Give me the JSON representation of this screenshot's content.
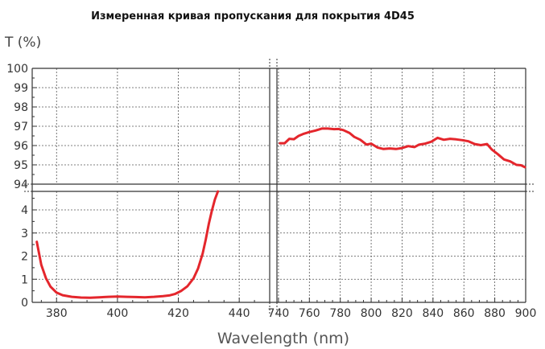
{
  "chart_data": {
    "type": "line",
    "title": "Измеренная кривая пропускания для покрытия 4D45",
    "ylabel": "T (%)",
    "xlabel": "Wavelength (nm)",
    "broken_axes": true,
    "grid": true,
    "colors": {
      "series": "#e4262c",
      "axis": "#333333",
      "grid": "#555555"
    },
    "x_ranges": [
      [
        372,
        450
      ],
      [
        739,
        900
      ]
    ],
    "y_ranges": [
      [
        0,
        4.8
      ],
      [
        94,
        100
      ]
    ],
    "xticks_left": [
      380,
      400,
      420,
      440
    ],
    "xticks_right": [
      740,
      760,
      780,
      800,
      820,
      840,
      860,
      880,
      900
    ],
    "xtick_labels_left": [
      "380",
      "400",
      "420",
      "440"
    ],
    "xtick_labels_right": [
      "740",
      "760",
      "780",
      "800",
      "820",
      "840",
      "860",
      "880",
      "900"
    ],
    "yticks_top": [
      94,
      95,
      96,
      97,
      98,
      99,
      100
    ],
    "yticks_bottom": [
      0,
      1,
      2,
      3,
      4
    ],
    "ytick_labels_top": [
      "94",
      "95",
      "96",
      "97",
      "98",
      "99",
      "100"
    ],
    "ytick_labels_bottom": [
      "0",
      "1",
      "2",
      "3",
      "4"
    ],
    "series": [
      {
        "segment": "short-wavelength",
        "x": [
          373.5,
          375,
          376.5,
          378,
          380,
          382,
          385,
          388,
          391,
          394,
          397,
          400,
          403,
          406,
          409,
          412,
          415,
          417,
          419,
          421,
          423,
          425,
          426.5,
          428,
          429,
          430,
          431,
          432,
          433
        ],
        "y": [
          2.62,
          1.62,
          1.05,
          0.68,
          0.42,
          0.31,
          0.24,
          0.21,
          0.2,
          0.22,
          0.24,
          0.25,
          0.24,
          0.23,
          0.22,
          0.24,
          0.27,
          0.3,
          0.37,
          0.5,
          0.7,
          1.04,
          1.47,
          2.12,
          2.72,
          3.4,
          3.95,
          4.45,
          4.8
        ]
      },
      {
        "segment": "long-wavelength",
        "x": [
          741,
          744,
          747,
          750,
          753,
          756,
          760,
          764,
          768,
          772,
          776,
          779,
          782,
          786,
          789,
          793,
          797,
          800,
          804,
          808,
          812,
          816,
          820,
          824,
          828,
          831,
          835,
          839,
          843,
          847,
          851,
          855,
          859,
          863,
          867,
          871,
          875,
          878,
          882,
          886,
          890,
          894,
          897,
          899.5
        ],
        "y": [
          96.12,
          96.12,
          96.35,
          96.33,
          96.5,
          96.6,
          96.7,
          96.78,
          96.88,
          96.88,
          96.85,
          96.86,
          96.8,
          96.65,
          96.45,
          96.3,
          96.05,
          96.1,
          95.9,
          95.82,
          95.85,
          95.82,
          95.87,
          95.97,
          95.92,
          96.05,
          96.1,
          96.2,
          96.4,
          96.3,
          96.35,
          96.32,
          96.28,
          96.22,
          96.08,
          96.02,
          96.08,
          95.8,
          95.55,
          95.28,
          95.18,
          95.0,
          94.98,
          94.88
        ]
      }
    ]
  }
}
